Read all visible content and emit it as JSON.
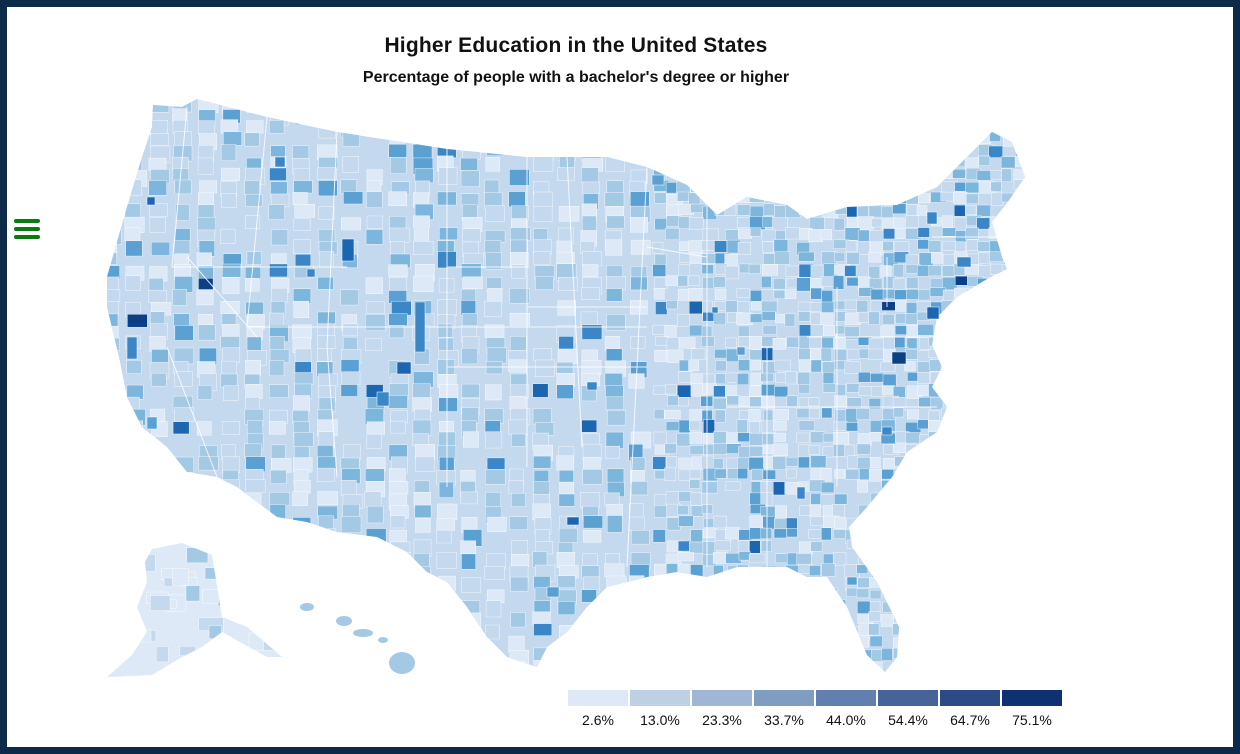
{
  "title": "Higher Education in the United States",
  "subtitle": "Percentage of people with a bachelor's degree or higher",
  "menu": {
    "icon": "hamburger-menu-icon",
    "color": "#0a7a10"
  },
  "colors": {
    "page_border": "#0d2a4a",
    "state_borders": "#ffffff",
    "scale": [
      "#dde9f6",
      "#c4d8ee",
      "#a3c9e5",
      "#7db6dc",
      "#5aa0d3",
      "#3a86c6",
      "#1c66b1",
      "#0b3f86"
    ]
  },
  "legend": {
    "colors": [
      "#dde9f6",
      "#bfd0e6",
      "#9fb7d4",
      "#7f9cc1",
      "#6180ad",
      "#46649a",
      "#2c4b86",
      "#0d3172"
    ],
    "labels": [
      "2.6%",
      "13.0%",
      "23.3%",
      "33.7%",
      "44.0%",
      "54.4%",
      "64.7%",
      "75.1%"
    ]
  }
}
